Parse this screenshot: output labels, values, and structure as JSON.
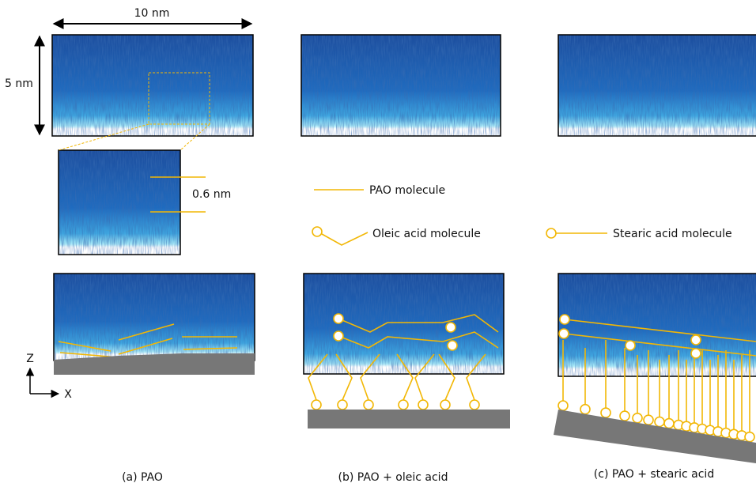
{
  "scale": {
    "width": "10 nm",
    "height": "5 nm",
    "spacing": "0.6 nm"
  },
  "legend": {
    "pao": "PAO molecule",
    "oleic": "Oleic acid molecule",
    "stearic": "Stearic acid molecule"
  },
  "axes": {
    "z": "Z",
    "x": "X"
  },
  "captions": [
    "(a) PAO",
    "(b) PAO + oleic acid",
    "(c) PAO + stearic acid"
  ]
}
